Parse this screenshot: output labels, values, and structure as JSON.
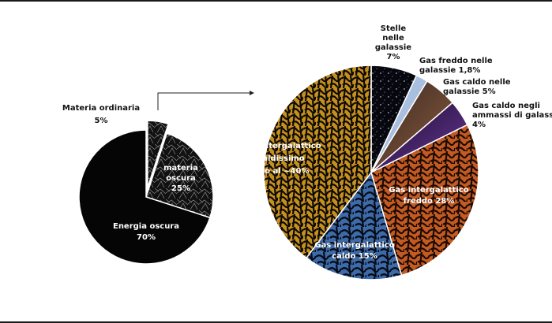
{
  "chart_data": [
    {
      "type": "pie",
      "series": [
        {
          "label_lines": [
            "Energia oscura",
            "70%"
          ],
          "value": 70,
          "color": "#050505"
        },
        {
          "label_lines": [
            "materia",
            "oscura",
            "25%"
          ],
          "value": 25,
          "color": "#1c1c1c"
        },
        {
          "label_lines": [
            "Materia ordinaria",
            "5%"
          ],
          "value": 5,
          "color": "#2a2a2a"
        }
      ]
    },
    {
      "type": "pie",
      "series": [
        {
          "label_lines": [
            "Stelle",
            "nelle",
            "galassie",
            "7%"
          ],
          "value": 7,
          "color": "#0b0b18"
        },
        {
          "label_lines": [
            "Gas freddo nelle",
            "galassie 1,8%"
          ],
          "value": 1.8,
          "color": "#9fb7d9"
        },
        {
          "label_lines": [
            "Gas caldo nelle",
            "galassie 5%"
          ],
          "value": 5,
          "color": "#5a3a2a"
        },
        {
          "label_lines": [
            "Gas caldo negli",
            "ammassi di galassie",
            "4%"
          ],
          "value": 4,
          "color": "#3e1a5e"
        },
        {
          "label_lines": [
            "Gas intergalattico",
            "freddo 28%"
          ],
          "value": 28,
          "color": "#c25a22"
        },
        {
          "label_lines": [
            "Gas intergalattico",
            "caldo 15%"
          ],
          "value": 15,
          "color": "#3d6aa8"
        },
        {
          "label_lines": [
            "Gas intergalattico",
            "caldissimo",
            "fino al ~40%"
          ],
          "value": 40,
          "color": "#c6901f"
        }
      ]
    }
  ]
}
